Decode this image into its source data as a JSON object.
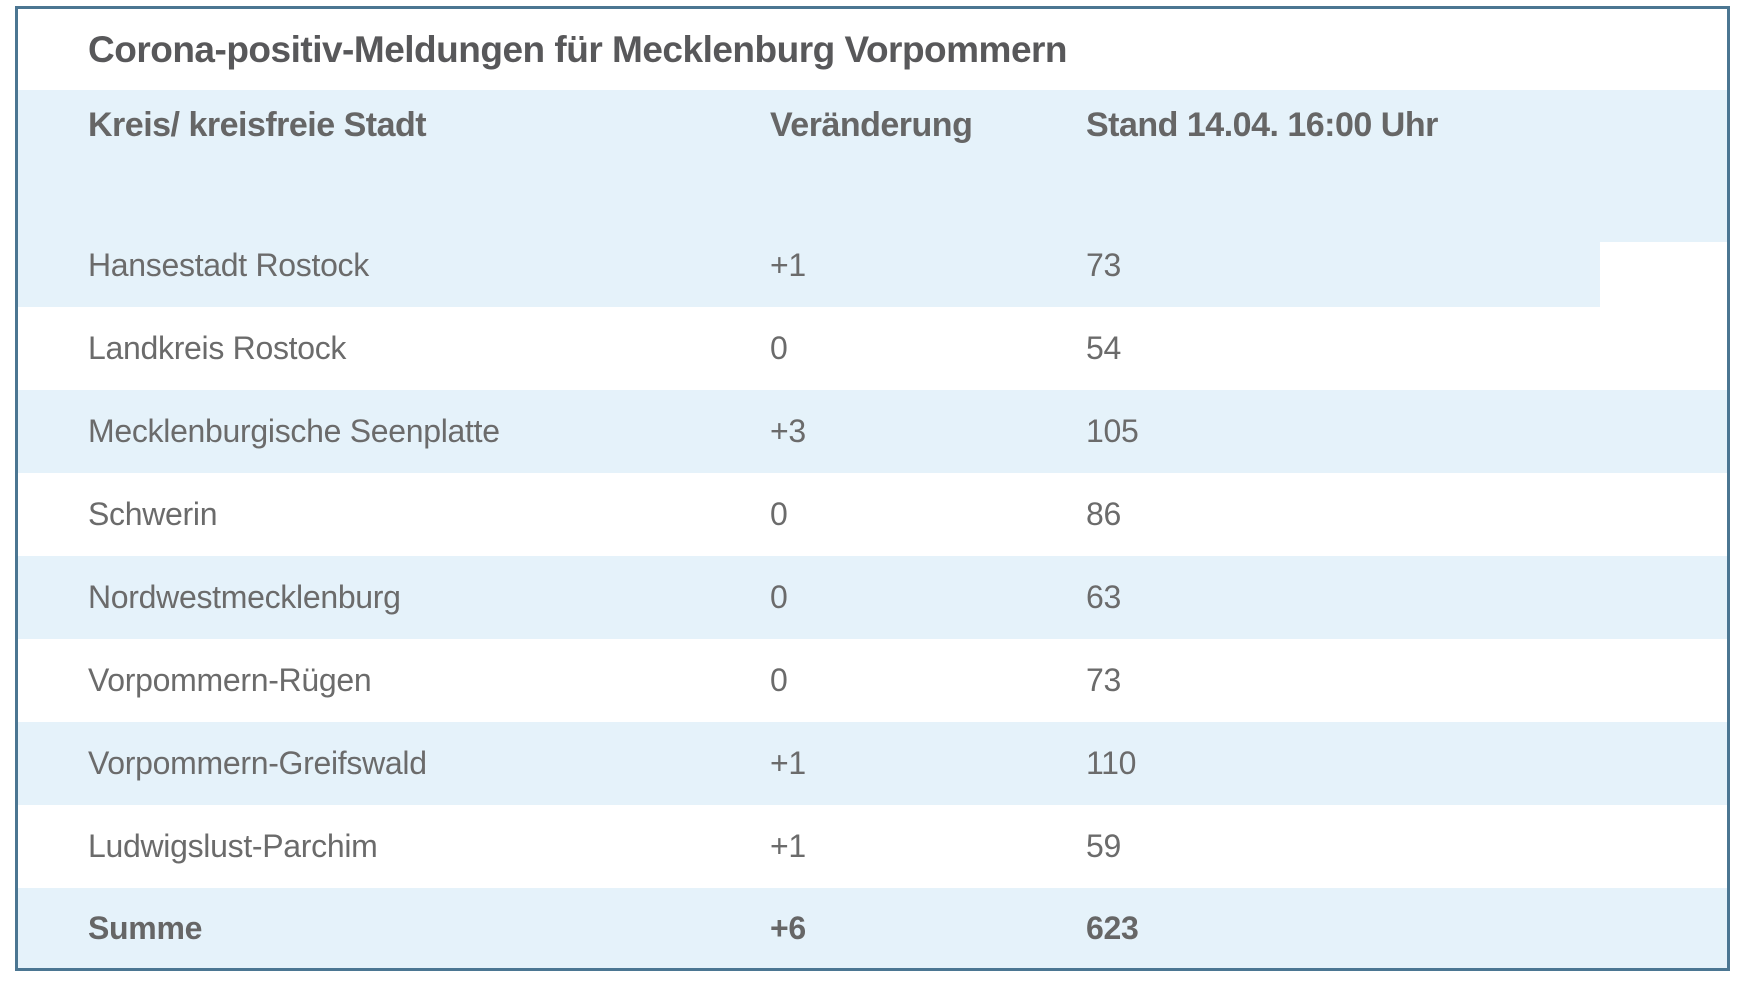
{
  "chart_data": {
    "type": "table",
    "title": "Corona-positiv-Meldungen für Mecklenburg Vorpommern",
    "columns": [
      "Kreis/ kreisfreie Stadt",
      "Veränderung",
      "Stand 14.04. 16:00 Uhr"
    ],
    "rows": [
      [
        "Hansestadt Rostock",
        "+1",
        "73"
      ],
      [
        "Landkreis Rostock",
        "0",
        "54"
      ],
      [
        "Mecklenburgische Seenplatte",
        "+3",
        "105"
      ],
      [
        "Schwerin",
        "0",
        "86"
      ],
      [
        "Nordwestmecklenburg",
        "0",
        "63"
      ],
      [
        "Vorpommern-Rügen",
        "0",
        "73"
      ],
      [
        "Vorpommern-Greifswald",
        "+1",
        "110"
      ],
      [
        "Ludwigslust-Parchim",
        "+1",
        "59"
      ],
      [
        "Summe",
        "+6",
        "623"
      ]
    ],
    "layout_hints": {
      "zebra_striping": true,
      "striped_rows": "header, row 1, row 3, row 5, row 7 and summary are light blue; others white",
      "summary_row_bold": true,
      "header_bold": true
    }
  },
  "colors": {
    "stripe": "#e5f2fa",
    "border": "#4b7692",
    "title_text": "#58585a",
    "header_text": "#666666",
    "body_text": "#6b6b6b"
  }
}
